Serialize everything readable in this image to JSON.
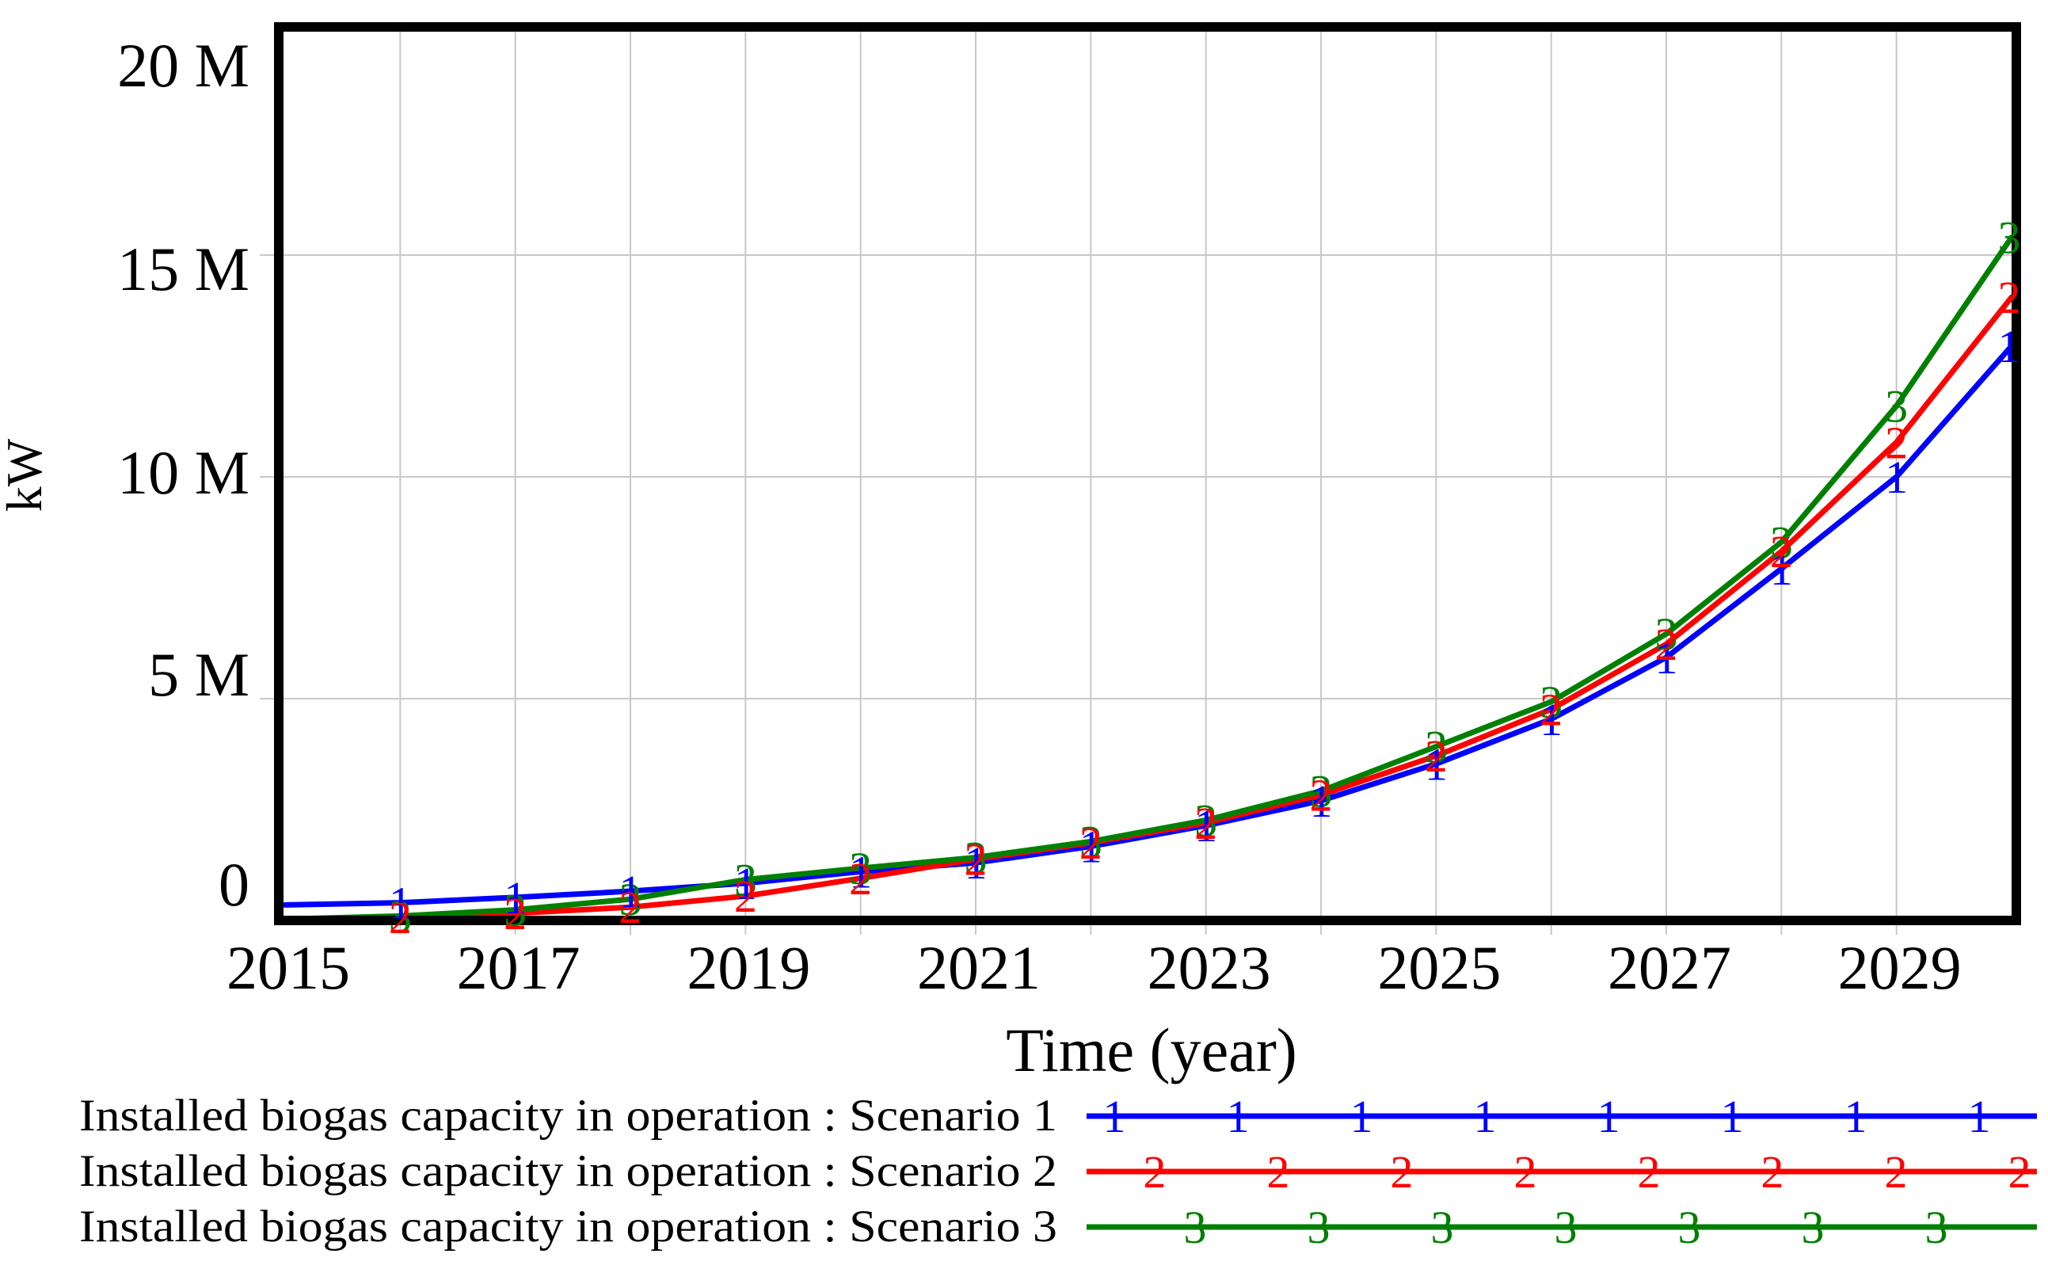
{
  "chart_data": {
    "type": "line",
    "title": "",
    "xlabel": "Time (year)",
    "ylabel": "kW",
    "xlim": [
      2015,
      2030
    ],
    "ylim_kW": [
      0,
      20000000
    ],
    "grid": true,
    "legend_position": "bottom-left",
    "x": [
      2015,
      2016,
      2017,
      2018,
      2019,
      2020,
      2021,
      2022,
      2023,
      2024,
      2025,
      2026,
      2027,
      2028,
      2029,
      2030
    ],
    "x_tick_labels": [
      "2015",
      "2017",
      "2019",
      "2021",
      "2023",
      "2025",
      "2027",
      "2029"
    ],
    "x_tick_years": [
      2015,
      2017,
      2019,
      2021,
      2023,
      2025,
      2027,
      2029
    ],
    "y_tick_labels": [
      "0",
      "5 M",
      "10 M",
      "15 M",
      "20 M"
    ],
    "y_tick_values_M": [
      0,
      5,
      10,
      15,
      20
    ],
    "series": [
      {
        "name": "Installed biogas capacity in operation : Scenario 1",
        "marker": "1",
        "color": "#0000ff",
        "values_M_kW": [
          0.35,
          0.4,
          0.52,
          0.66,
          0.84,
          1.1,
          1.3,
          1.67,
          2.14,
          2.7,
          3.53,
          4.54,
          5.93,
          7.93,
          10.0,
          12.95
        ]
      },
      {
        "name": "Installed biogas capacity in operation : Scenario 2",
        "marker": "2",
        "color": "#ff0000",
        "values_M_kW": [
          0.02,
          0.07,
          0.16,
          0.3,
          0.55,
          0.95,
          1.38,
          1.75,
          2.2,
          2.83,
          3.71,
          4.76,
          6.23,
          8.32,
          10.78,
          14.05
        ]
      },
      {
        "name": "Installed biogas capacity in operation : Scenario 3",
        "marker": "3",
        "color": "#008000",
        "values_M_kW": [
          0.03,
          0.1,
          0.24,
          0.48,
          0.92,
          1.18,
          1.42,
          1.78,
          2.26,
          2.92,
          3.92,
          4.93,
          6.46,
          8.53,
          11.6,
          15.4
        ]
      }
    ],
    "colors": {
      "frame": "#000000",
      "gridline": "#c8c8c8",
      "text": "#000000",
      "background": "#ffffff"
    }
  }
}
